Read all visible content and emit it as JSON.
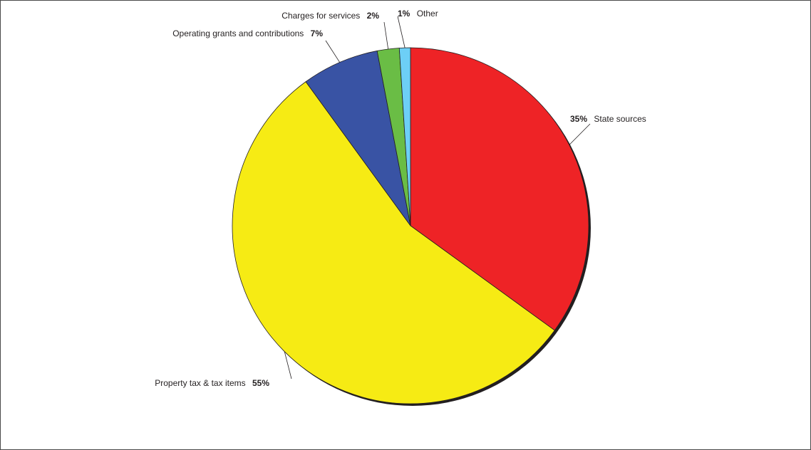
{
  "chart_data": {
    "type": "pie",
    "title": "",
    "unit": "%",
    "direction": "clockwise",
    "start": "12 o'clock",
    "slices": [
      {
        "label": "State sources",
        "value": 35,
        "value_label": "35%",
        "color": "#ee2326"
      },
      {
        "label": "Property tax & tax items",
        "value": 55,
        "value_label": "55%",
        "color": "#f6eb14"
      },
      {
        "label": "Operating grants and contributions",
        "value": 7,
        "value_label": "7%",
        "color": "#3953a4"
      },
      {
        "label": "Charges for services",
        "value": 2,
        "value_label": "2%",
        "color": "#6abd45"
      },
      {
        "label": "Other",
        "value": 1,
        "value_label": "1%",
        "color": "#6dcff6"
      }
    ],
    "legend": "none (labels beside slices)"
  }
}
